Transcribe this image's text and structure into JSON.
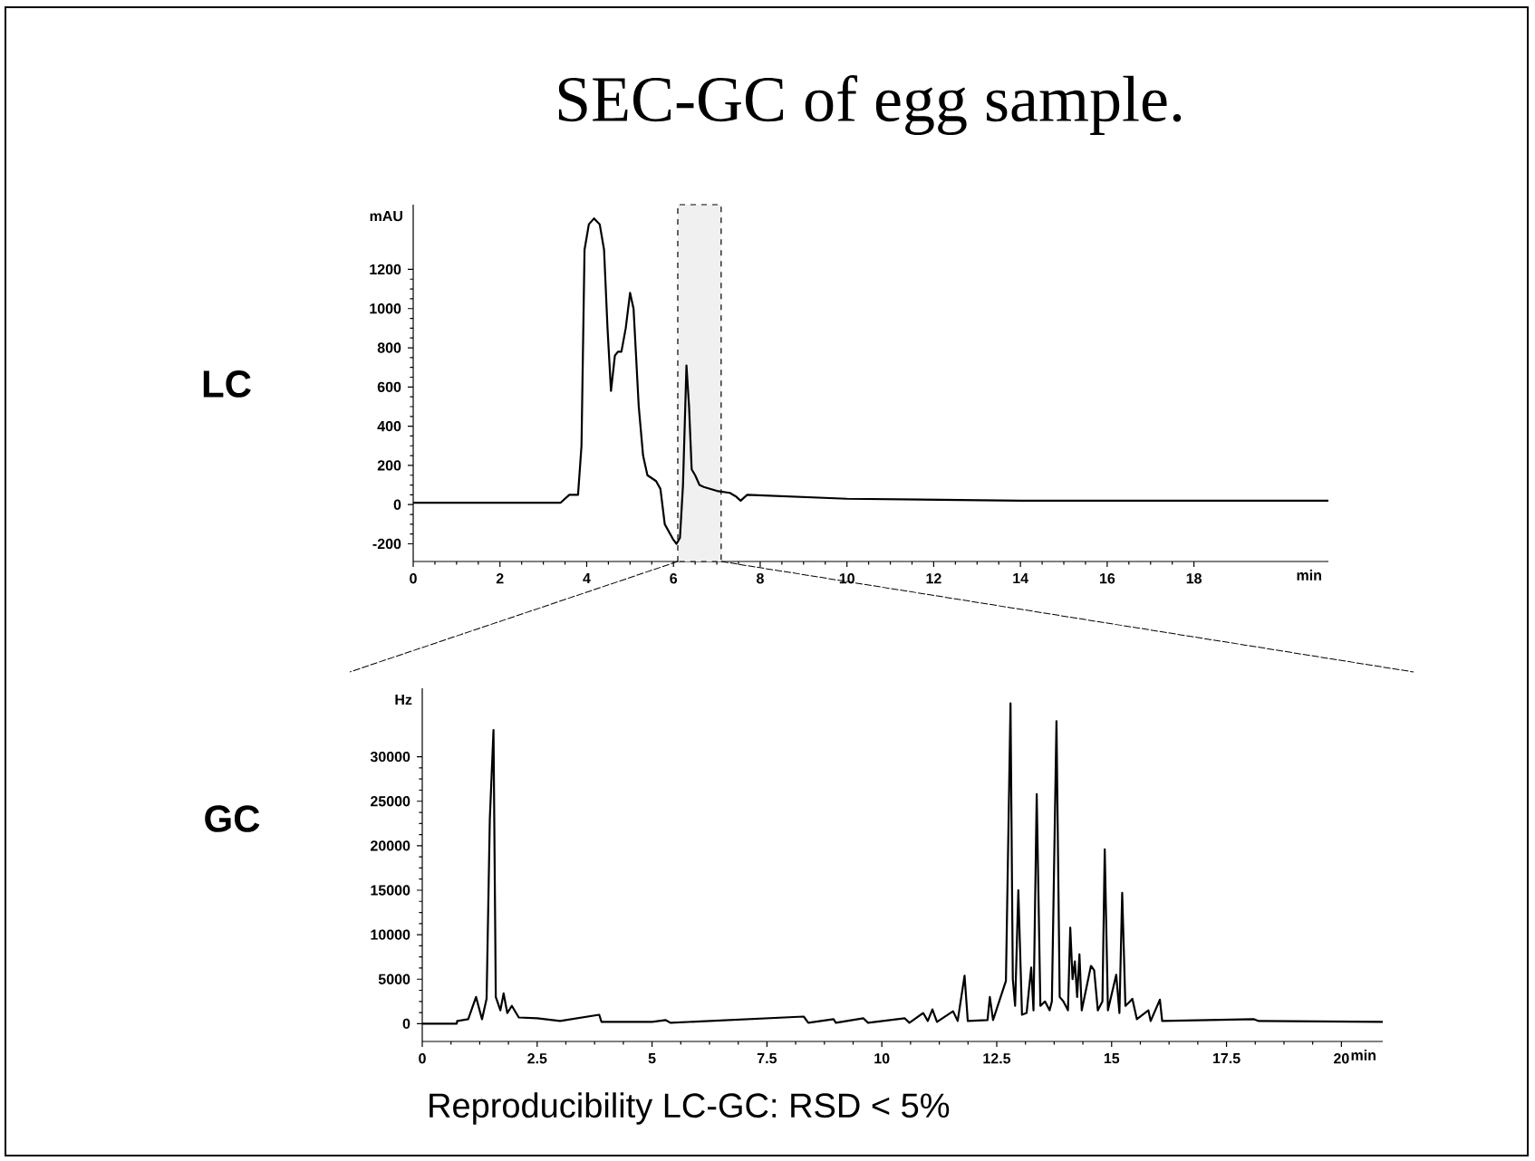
{
  "chart_data": [
    {
      "type": "line",
      "title": "SEC-GC of egg sample.",
      "annotations": [
        "LC"
      ],
      "xlabel": "min",
      "ylabel": "mAU",
      "color": "#000000",
      "x": [
        0,
        3.4,
        3.6,
        3.8,
        3.88,
        3.95,
        4.05,
        4.17,
        4.3,
        4.4,
        4.48,
        4.56,
        4.65,
        4.72,
        4.8,
        4.9,
        5.0,
        5.08,
        5.2,
        5.3,
        5.4,
        5.6,
        5.7,
        5.8,
        6.0,
        6.07,
        6.15,
        6.22,
        6.3,
        6.36,
        6.42,
        6.5,
        6.6,
        6.7,
        7.0,
        7.3,
        7.45,
        7.55,
        7.7,
        10,
        14,
        21.1
      ],
      "values": [
        10,
        10,
        50,
        50,
        300,
        1300,
        1430,
        1460,
        1430,
        1300,
        900,
        580,
        760,
        780,
        780,
        900,
        1080,
        1000,
        500,
        250,
        150,
        120,
        80,
        -100,
        -180,
        -200,
        -170,
        100,
        710,
        500,
        180,
        150,
        100,
        90,
        70,
        60,
        40,
        20,
        50,
        30,
        20,
        20
      ],
      "xlim": [
        0,
        21.1
      ],
      "ylim": [
        -290,
        1530
      ],
      "xticks": [
        0,
        2,
        4,
        6,
        8,
        10,
        12,
        14,
        16,
        18
      ],
      "yticks": [
        -200,
        0,
        200,
        400,
        600,
        800,
        1000,
        1200
      ],
      "bands": [
        {
          "axis": "x",
          "from": 6.1,
          "to": 7.1
        }
      ]
    },
    {
      "type": "line",
      "annotations": [
        "GC",
        "Reproducibility LC-GC: RSD < 5%"
      ],
      "xlabel": "min",
      "ylabel": "Hz",
      "color": "#000000",
      "x": [
        0,
        0.75,
        0.76,
        1.0,
        1.17,
        1.3,
        1.4,
        1.47,
        1.55,
        1.6,
        1.7,
        1.77,
        1.85,
        1.95,
        2.1,
        2.5,
        3,
        3.85,
        3.9,
        5,
        5.3,
        5.4,
        8.3,
        8.4,
        8.95,
        9.0,
        9.6,
        9.7,
        10.5,
        10.6,
        10.9,
        11.0,
        11.1,
        11.2,
        11.55,
        11.65,
        11.8,
        11.87,
        12.3,
        12.35,
        12.42,
        12.7,
        12.8,
        12.85,
        12.9,
        12.97,
        13.05,
        13.15,
        13.25,
        13.3,
        13.37,
        13.45,
        13.55,
        13.65,
        13.7,
        13.8,
        13.87,
        13.95,
        14.05,
        14.1,
        14.15,
        14.2,
        14.25,
        14.3,
        14.35,
        14.45,
        14.55,
        14.62,
        14.7,
        14.8,
        14.85,
        14.92,
        15.1,
        15.17,
        15.23,
        15.3,
        15.4,
        15.45,
        15.55,
        15.8,
        15.85,
        16.05,
        16.1,
        18.1,
        18.2,
        20.9
      ],
      "values": [
        0,
        0,
        300,
        500,
        3000,
        500,
        2800,
        23000,
        33000,
        3000,
        1500,
        3400,
        1200,
        2000,
        700,
        600,
        300,
        1000,
        200,
        200,
        400,
        100,
        800,
        100,
        500,
        100,
        600,
        100,
        600,
        100,
        1200,
        300,
        1600,
        200,
        1400,
        300,
        5400,
        300,
        400,
        3000,
        400,
        4800,
        36000,
        5000,
        2000,
        15000,
        1000,
        1200,
        6300,
        1500,
        25800,
        2000,
        2500,
        1500,
        2500,
        34000,
        3000,
        2500,
        1500,
        10800,
        5000,
        7000,
        3000,
        7800,
        1500,
        4000,
        6500,
        6000,
        1500,
        2500,
        19600,
        1500,
        5500,
        1200,
        14700,
        2000,
        2500,
        2800,
        500,
        1500,
        300,
        2700,
        300,
        500,
        300,
        200
      ],
      "xlim": [
        0,
        20.9
      ],
      "ylim": [
        -2000,
        37700
      ],
      "xticks": [
        0,
        2.5,
        5,
        7.5,
        10,
        12.5,
        15,
        17.5,
        20
      ],
      "yticks": [
        0,
        5000,
        10000,
        15000,
        20000,
        25000,
        30000
      ]
    }
  ]
}
